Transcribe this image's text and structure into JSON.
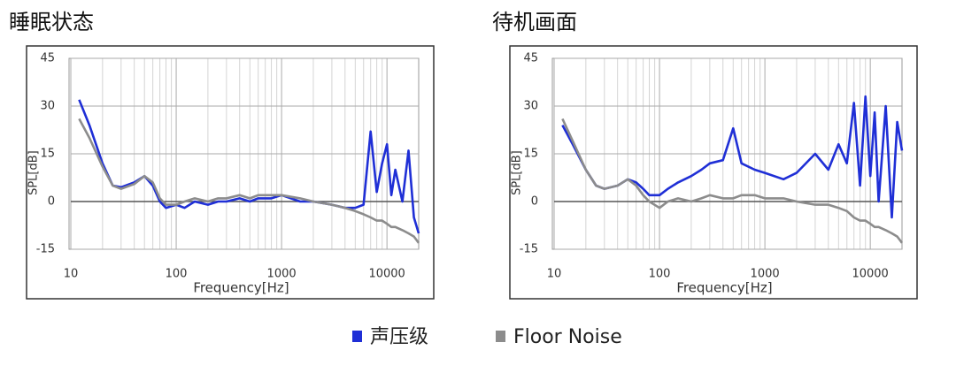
{
  "chart_data": [
    {
      "type": "line",
      "title": "睡眠状态",
      "x_label": "Frequency[Hz]",
      "y_label": "SPL[dB]",
      "log_x": true,
      "grid": true,
      "xlim": [
        10,
        20000
      ],
      "xticks": [
        10,
        100,
        1000,
        10000
      ],
      "ylim": [
        -15,
        45
      ],
      "yticks": [
        -15,
        0,
        15,
        30,
        45
      ],
      "x": [
        12,
        15,
        20,
        25,
        30,
        40,
        50,
        60,
        70,
        80,
        100,
        120,
        150,
        200,
        250,
        300,
        400,
        500,
        600,
        800,
        1000,
        1500,
        2000,
        3000,
        4000,
        5000,
        6000,
        7000,
        8000,
        9000,
        10000,
        11000,
        12000,
        14000,
        16000,
        18000,
        20000
      ],
      "series": [
        {
          "name": "声压级",
          "color": "#1f2fd6",
          "values": [
            32,
            24,
            12,
            5,
            4.5,
            6,
            8,
            5,
            0,
            -2,
            -1,
            -2,
            0,
            -1,
            0,
            0,
            1,
            0,
            1,
            1,
            2,
            0,
            0,
            -1,
            -2,
            -2,
            -1,
            22,
            3,
            12,
            18,
            2,
            10,
            0,
            16,
            -5,
            -10
          ]
        },
        {
          "name": "Floor Noise",
          "color": "#8c8c8c",
          "values": [
            26,
            20,
            11,
            5,
            4,
            5.5,
            8,
            6,
            1,
            -1,
            -1,
            0,
            1,
            0,
            1,
            1,
            2,
            1,
            2,
            2,
            2,
            1,
            0,
            -1,
            -2,
            -3,
            -4,
            -5,
            -6,
            -6,
            -7,
            -8,
            -8,
            -9,
            -10,
            -11,
            -13
          ]
        }
      ]
    },
    {
      "type": "line",
      "title": "待机画面",
      "x_label": "Frequency[Hz]",
      "y_label": "SPL[dB]",
      "log_x": true,
      "grid": true,
      "xlim": [
        10,
        20000
      ],
      "xticks": [
        10,
        100,
        1000,
        10000
      ],
      "ylim": [
        -15,
        45
      ],
      "yticks": [
        -15,
        0,
        15,
        30,
        45
      ],
      "x": [
        12,
        15,
        20,
        25,
        30,
        40,
        50,
        60,
        70,
        80,
        100,
        120,
        150,
        200,
        250,
        300,
        400,
        500,
        600,
        800,
        1000,
        1500,
        2000,
        3000,
        4000,
        5000,
        6000,
        7000,
        8000,
        9000,
        10000,
        11000,
        12000,
        14000,
        16000,
        18000,
        20000
      ],
      "series": [
        {
          "name": "声压级",
          "color": "#1f2fd6",
          "values": [
            24,
            18,
            10,
            5,
            4,
            5,
            7,
            6,
            4,
            2,
            2,
            4,
            6,
            8,
            10,
            12,
            13,
            23,
            12,
            10,
            9,
            7,
            9,
            15,
            10,
            18,
            12,
            31,
            5,
            33,
            8,
            28,
            0,
            30,
            -5,
            25,
            16
          ]
        },
        {
          "name": "Floor Noise",
          "color": "#8c8c8c",
          "values": [
            26,
            19,
            10,
            5,
            4,
            5,
            7,
            5,
            2,
            0,
            -2,
            0,
            1,
            0,
            1,
            2,
            1,
            1,
            2,
            2,
            1,
            1,
            0,
            -1,
            -1,
            -2,
            -3,
            -5,
            -6,
            -6,
            -7,
            -8,
            -8,
            -9,
            -10,
            -11,
            -13
          ]
        }
      ]
    }
  ]
}
